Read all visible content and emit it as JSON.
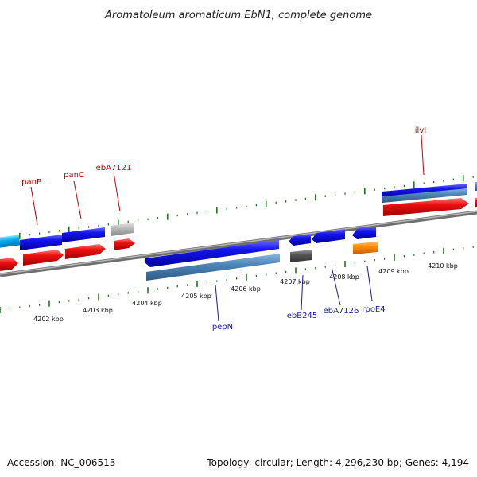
{
  "title": "Aromatoleum aromaticum EbN1, complete genome",
  "footer": {
    "accession": "Accession: NC_006513",
    "summary": "Topology: circular; Length: 4,296,230 bp; Genes: 4,194"
  },
  "colors": {
    "backbone": "#8a8a8a",
    "tick": "#1e7a1e",
    "label_red": "#cc0000",
    "label_blue": "#1a1aaa",
    "gene_blue": "#1010e0",
    "gene_red": "#ee1111",
    "gene_steel": "#4f86b8",
    "gene_gray": "#bbbbbb",
    "gene_dark": "#555555",
    "gene_orange": "#ff8c00",
    "gene_cyan": "#00aaee"
  },
  "axis": {
    "ticks": [
      {
        "label": "4202 kbp"
      },
      {
        "label": "4203 kbp"
      },
      {
        "label": "4204 kbp"
      },
      {
        "label": "4205 kbp"
      },
      {
        "label": "4206 kbp"
      },
      {
        "label": "4207 kbp"
      },
      {
        "label": "4208 kbp"
      },
      {
        "label": "4209 kbp"
      },
      {
        "label": "4210 kbp"
      }
    ]
  },
  "gene_labels_top": [
    {
      "text": "panB"
    },
    {
      "text": "panC"
    },
    {
      "text": "ebA7121"
    },
    {
      "text": "ilvI"
    }
  ],
  "gene_labels_bottom": [
    {
      "text": "pepN"
    },
    {
      "text": "ebB245"
    },
    {
      "text": "ebA7126"
    },
    {
      "text": "rpoE4"
    }
  ]
}
